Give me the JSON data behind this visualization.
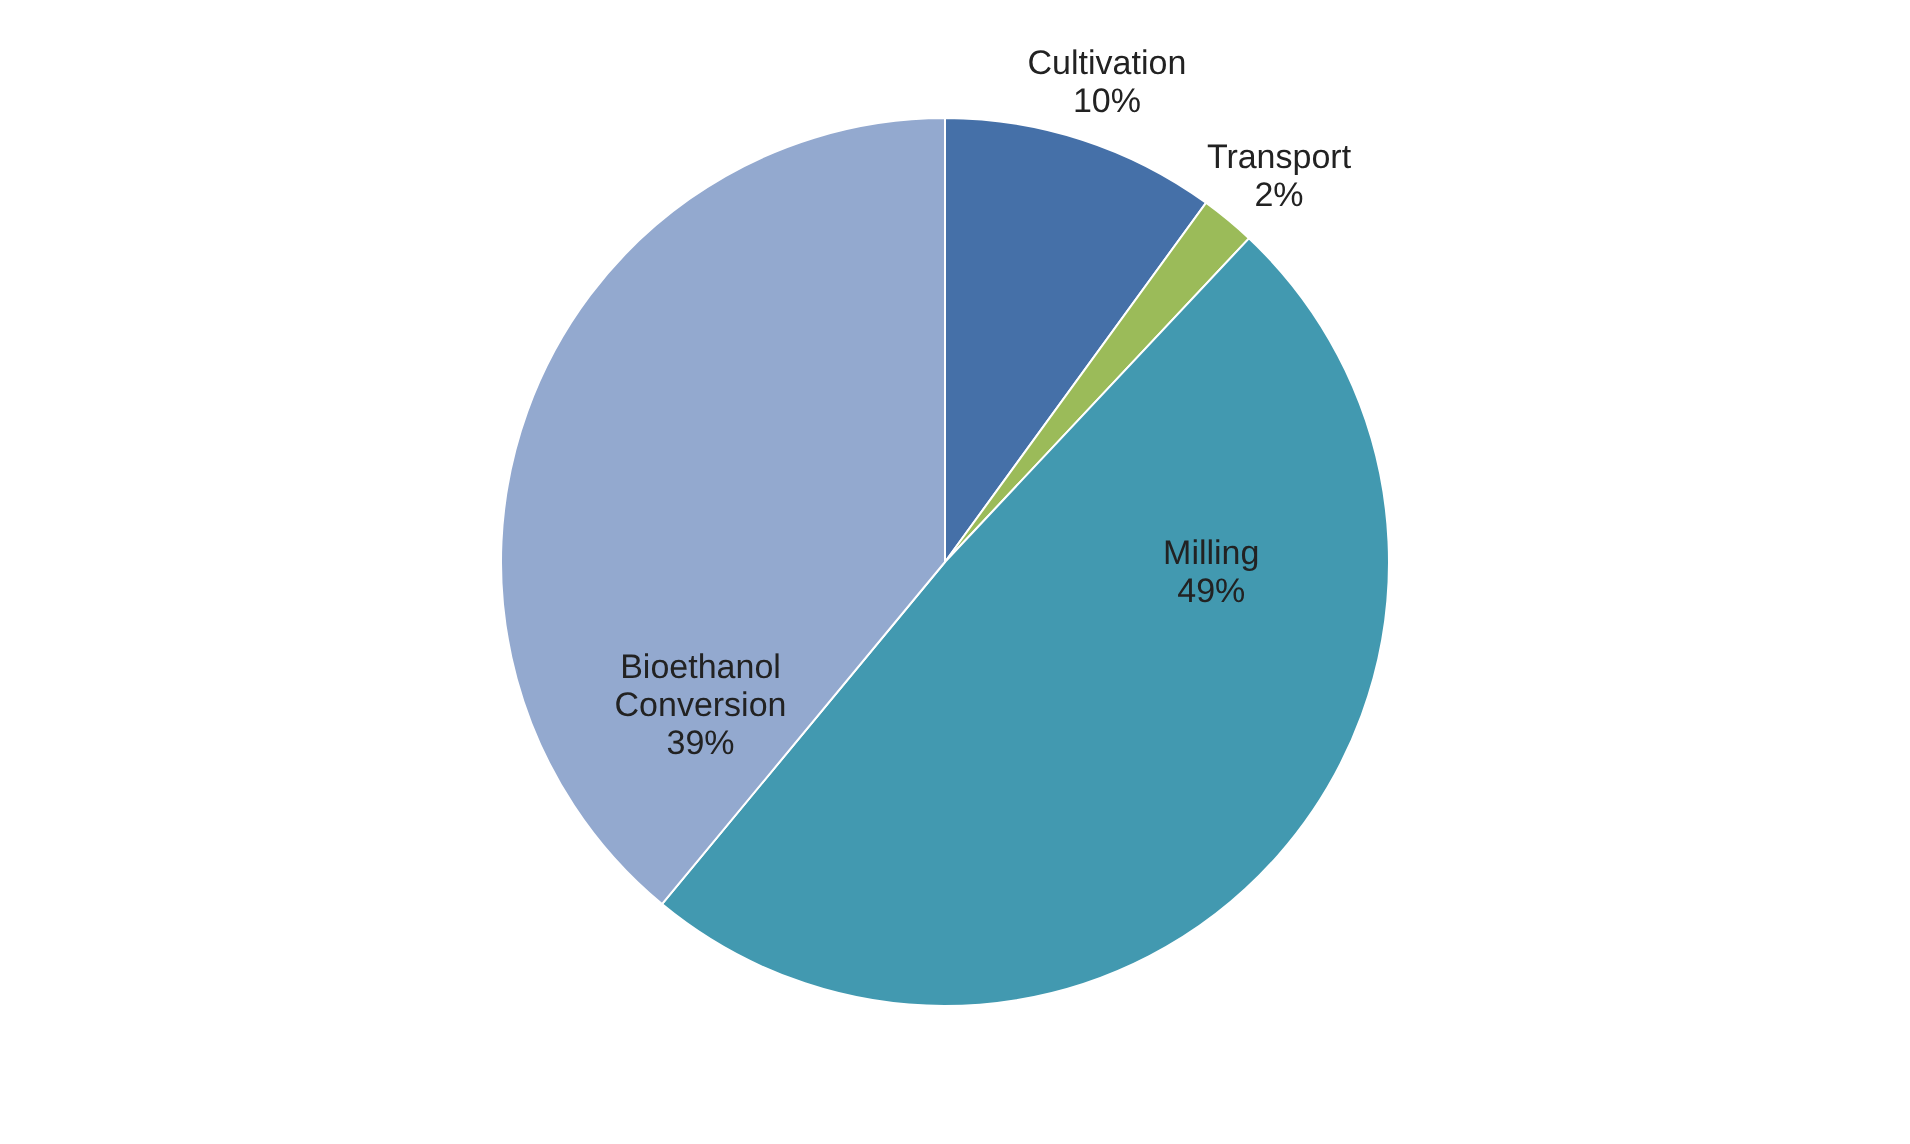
{
  "chart_data": {
    "type": "pie",
    "categories": [
      "Cultivation",
      "Transport",
      "Milling",
      "Bioethanol\nConversion"
    ],
    "values": [
      10,
      2,
      49,
      39
    ],
    "value_labels": [
      "10%",
      "2%",
      "49%",
      "39%"
    ],
    "colors": [
      "#4570a8",
      "#9bbb59",
      "#4299b0",
      "#93a9cf"
    ],
    "legend": false
  }
}
